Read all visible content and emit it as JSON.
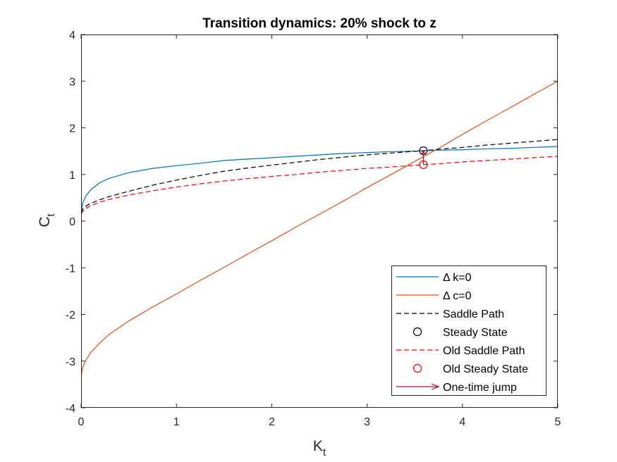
{
  "chart_data": {
    "type": "line",
    "title": "Transition dynamics: 20% shock to z",
    "xlabel": {
      "main": "K",
      "sub": "t"
    },
    "ylabel": {
      "main": "C",
      "sub": "t"
    },
    "xlim": [
      0,
      5
    ],
    "ylim": [
      -4,
      4
    ],
    "xticks": [
      0,
      1,
      2,
      3,
      4,
      5
    ],
    "yticks": [
      -4,
      -3,
      -2,
      -1,
      0,
      1,
      2,
      3,
      4
    ],
    "grid": false,
    "legend_position": "bottom-right",
    "series": [
      {
        "name": "Δ k=0",
        "style": "solid",
        "color": "#0072BD",
        "x": [
          0.0,
          0.01,
          0.02,
          0.05,
          0.1,
          0.2,
          0.3,
          0.5,
          0.75,
          1.0,
          1.25,
          1.5,
          1.75,
          2.0,
          2.25,
          2.5,
          2.75,
          3.0,
          3.25,
          3.5,
          3.75,
          4.0,
          4.25,
          4.5,
          4.75,
          5.0
        ],
        "y": [
          0.0,
          0.32,
          0.4,
          0.54,
          0.67,
          0.83,
          0.92,
          1.04,
          1.13,
          1.19,
          1.24,
          1.3,
          1.33,
          1.36,
          1.39,
          1.42,
          1.45,
          1.47,
          1.49,
          1.5,
          1.52,
          1.53,
          1.55,
          1.56,
          1.58,
          1.6
        ]
      },
      {
        "name": "Δ c=0",
        "style": "solid",
        "color": "#D95319",
        "x": [
          0.0,
          0.01,
          0.02,
          0.05,
          0.1,
          0.2,
          0.3,
          0.5,
          0.75,
          1.0,
          1.25,
          1.5,
          1.75,
          2.0,
          2.25,
          2.5,
          2.75,
          3.0,
          3.25,
          3.5,
          3.75,
          4.0,
          4.25,
          4.5,
          4.75,
          5.0
        ],
        "y": [
          -3.35,
          -3.2,
          -3.12,
          -2.98,
          -2.82,
          -2.6,
          -2.42,
          -2.14,
          -1.84,
          -1.56,
          -1.27,
          -0.99,
          -0.7,
          -0.42,
          -0.13,
          0.15,
          0.43,
          0.72,
          1.0,
          1.28,
          1.56,
          1.86,
          2.15,
          2.43,
          2.72,
          3.0
        ]
      },
      {
        "name": "Saddle Path",
        "style": "dashed",
        "color": "#000000",
        "x": [
          0.0,
          0.02,
          0.05,
          0.1,
          0.2,
          0.3,
          0.5,
          0.75,
          1.0,
          1.25,
          1.5,
          1.75,
          2.0,
          2.25,
          2.5,
          2.75,
          3.0,
          3.25,
          3.59,
          3.75,
          4.0,
          4.25,
          4.5,
          4.75,
          5.0
        ],
        "y": [
          0.18,
          0.26,
          0.32,
          0.38,
          0.46,
          0.53,
          0.64,
          0.77,
          0.88,
          0.98,
          1.07,
          1.14,
          1.2,
          1.26,
          1.32,
          1.37,
          1.42,
          1.46,
          1.51,
          1.54,
          1.58,
          1.63,
          1.67,
          1.71,
          1.75
        ]
      },
      {
        "name": "Steady State",
        "style": "marker-circle",
        "color": "#000000",
        "x": [
          3.59
        ],
        "y": [
          1.51
        ]
      },
      {
        "name": "Old Saddle Path",
        "style": "dashed",
        "color": "#FF0000",
        "x": [
          0.0,
          0.02,
          0.05,
          0.1,
          0.2,
          0.3,
          0.5,
          0.75,
          1.0,
          1.25,
          1.5,
          1.75,
          2.0,
          2.25,
          2.5,
          2.75,
          3.0,
          3.25,
          3.59,
          3.75,
          4.0,
          4.25,
          4.5,
          4.75,
          5.0
        ],
        "y": [
          0.15,
          0.22,
          0.27,
          0.33,
          0.41,
          0.47,
          0.56,
          0.65,
          0.73,
          0.8,
          0.86,
          0.91,
          0.96,
          1.0,
          1.05,
          1.09,
          1.13,
          1.16,
          1.21,
          1.23,
          1.27,
          1.3,
          1.33,
          1.36,
          1.39
        ]
      },
      {
        "name": "Old Steady State",
        "style": "marker-circle",
        "color": "#FF0000",
        "x": [
          3.59
        ],
        "y": [
          1.21
        ]
      },
      {
        "name": "One-time jump",
        "style": "arrow",
        "color": "#A2142F",
        "x": [
          3.59,
          3.59
        ],
        "y": [
          1.21,
          1.51
        ]
      }
    ]
  }
}
